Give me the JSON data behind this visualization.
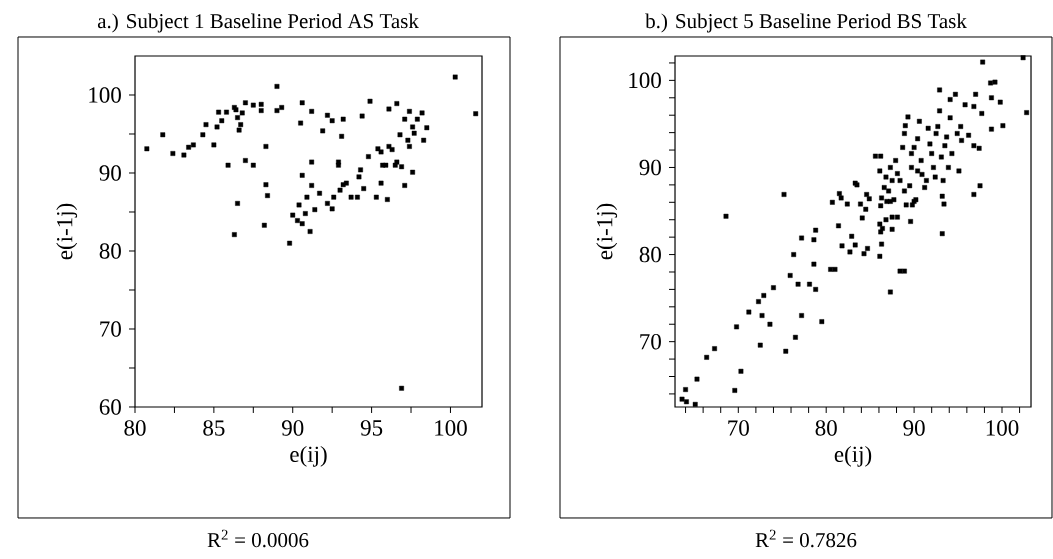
{
  "chart_data": [
    {
      "type": "scatter",
      "title": "a.) Subject 1 Baseline Period AS Task",
      "xlabel": "e(ij)",
      "ylabel": "e(i-1j)",
      "annotations": [
        "R$^{2}$ = 0.0006"
      ],
      "color": "#000000",
      "marker": "square",
      "grid": false,
      "xlim": [
        80,
        102
      ],
      "ylim": [
        60,
        105
      ],
      "xticks": [
        80,
        {
          "value": 82.5,
          "label": null
        },
        85,
        {
          "value": 87.5,
          "label": null
        },
        90,
        {
          "value": 92.5,
          "label": null
        },
        95,
        {
          "value": 97.5,
          "label": null
        },
        100
      ],
      "yticks": [
        60,
        {
          "value": 65,
          "label": null
        },
        70,
        {
          "value": 75,
          "label": null
        },
        80,
        {
          "value": 85,
          "label": null
        },
        90,
        {
          "value": 95,
          "label": null
        },
        100
      ],
      "x": [
        80.75,
        81.76,
        82.4,
        83.1,
        83.4,
        83.7,
        84.3,
        84.5,
        85.0,
        85.2,
        85.3,
        85.5,
        85.8,
        85.9,
        86.3,
        86.4,
        86.5,
        86.6,
        86.7,
        86.8,
        86.3,
        86.5,
        87.0,
        87.0,
        87.5,
        87.5,
        88.0,
        88.0,
        88.3,
        88.3,
        88.4,
        88.2,
        89.0,
        89.0,
        89.3,
        89.8,
        90.0,
        90.3,
        90.6,
        90.4,
        90.6,
        90.5,
        90.6,
        90.8,
        90.9,
        91.1,
        91.2,
        91.2,
        91.2,
        91.4,
        91.7,
        91.9,
        92.2,
        92.2,
        92.5,
        92.5,
        92.6,
        92.9,
        92.9,
        93.1,
        93.2,
        93.0,
        93.2,
        93.4,
        93.7,
        94.1,
        94.2,
        94.3,
        94.5,
        94.4,
        94.8,
        94.9,
        95.3,
        95.4,
        95.6,
        95.6,
        95.7,
        95.9,
        96.0,
        96.1,
        96.1,
        96.3,
        96.5,
        96.6,
        96.6,
        96.8,
        96.9,
        97.1,
        97.1,
        97.3,
        97.4,
        97.4,
        97.6,
        97.6,
        97.7,
        97.9,
        98.2,
        98.3,
        98.5,
        100.3,
        101.6,
        96.9
      ],
      "values": [
        93.1,
        94.9,
        92.5,
        92.3,
        93.3,
        93.6,
        94.9,
        96.2,
        93.6,
        95.9,
        97.8,
        96.7,
        97.8,
        91.0,
        98.4,
        98.1,
        97.1,
        95.5,
        96.2,
        97.7,
        82.1,
        86.1,
        99.0,
        91.6,
        98.7,
        91.0,
        98.8,
        98.0,
        93.4,
        88.5,
        87.1,
        83.3,
        101.1,
        98.0,
        98.4,
        81.0,
        84.6,
        83.9,
        83.5,
        85.9,
        99.0,
        96.4,
        89.7,
        84.8,
        86.9,
        82.5,
        91.4,
        97.9,
        88.4,
        85.3,
        87.4,
        95.4,
        97.4,
        86.1,
        96.7,
        85.4,
        86.9,
        91.4,
        91.0,
        94.7,
        96.9,
        87.8,
        88.5,
        88.7,
        86.9,
        86.9,
        89.5,
        90.4,
        88.0,
        97.3,
        92.1,
        99.2,
        86.9,
        93.1,
        92.7,
        88.7,
        91.0,
        91.0,
        86.6,
        98.2,
        93.4,
        93.0,
        91.0,
        98.9,
        91.4,
        94.9,
        90.8,
        88.4,
        96.9,
        94.2,
        97.9,
        93.4,
        95.9,
        90.1,
        95.1,
        96.9,
        97.7,
        94.2,
        95.8,
        102.3,
        97.6,
        62.4
      ]
    },
    {
      "type": "scatter",
      "title": "b.) Subject 5 Baseline Period BS Task",
      "xlabel": "e(ij)",
      "ylabel": "e(i-1j)",
      "annotations": [
        "R$^{2}$ = 0.7826"
      ],
      "color": "#000000",
      "marker": "square",
      "grid": false,
      "xlim": [
        62.8,
        103.3
      ],
      "ylim": [
        62.5,
        102.8
      ],
      "xticks": [
        {
          "value": 64,
          "label": null
        },
        {
          "value": 66,
          "label": null
        },
        {
          "value": 68,
          "label": null
        },
        70,
        {
          "value": 72,
          "label": null
        },
        {
          "value": 74,
          "label": null
        },
        {
          "value": 76,
          "label": null
        },
        {
          "value": 78,
          "label": null
        },
        80,
        {
          "value": 82,
          "label": null
        },
        {
          "value": 84,
          "label": null
        },
        {
          "value": 86,
          "label": null
        },
        {
          "value": 88,
          "label": null
        },
        90,
        {
          "value": 92,
          "label": null
        },
        {
          "value": 94,
          "label": null
        },
        {
          "value": 96,
          "label": null
        },
        {
          "value": 98,
          "label": null
        },
        100,
        {
          "value": 102,
          "label": null
        }
      ],
      "yticks": [
        {
          "value": 64,
          "label": null
        },
        {
          "value": 66,
          "label": null
        },
        {
          "value": 68,
          "label": null
        },
        70,
        {
          "value": 72,
          "label": null
        },
        {
          "value": 74,
          "label": null
        },
        {
          "value": 76,
          "label": null
        },
        {
          "value": 78,
          "label": null
        },
        80,
        {
          "value": 82,
          "label": null
        },
        {
          "value": 84,
          "label": null
        },
        {
          "value": 86,
          "label": null
        },
        {
          "value": 88,
          "label": null
        },
        90,
        {
          "value": 92,
          "label": null
        },
        {
          "value": 94,
          "label": null
        },
        {
          "value": 96,
          "label": null
        },
        {
          "value": 98,
          "label": null
        },
        100,
        {
          "value": 102,
          "label": null
        }
      ],
      "x": [
        63.6,
        64.1,
        65.1,
        64.0,
        65.3,
        69.6,
        70.3,
        75.4,
        72.5,
        66.4,
        67.3,
        68.6,
        69.8,
        71.2,
        72.3,
        72.9,
        74.0,
        72.7,
        73.6,
        75.2,
        75.9,
        76.3,
        76.8,
        77.2,
        77.2,
        76.5,
        78.1,
        78.6,
        78.6,
        78.8,
        78.8,
        79.5,
        80.5,
        81.0,
        80.7,
        81.4,
        81.5,
        81.8,
        81.7,
        82.4,
        82.7,
        82.9,
        83.3,
        83.3,
        83.5,
        83.9,
        84.1,
        84.3,
        84.5,
        84.7,
        84.6,
        84.9,
        85.6,
        86.2,
        86.1,
        86.3,
        86.2,
        86.1,
        86.2,
        86.3,
        86.1,
        86.4,
        86.8,
        87.3,
        87.5,
        87.1,
        87.5,
        88.1,
        86.9,
        87.3,
        87.7,
        86.6,
        86.8,
        87.3,
        87.5,
        87.9,
        88.1,
        88.4,
        88.4,
        88.9,
        88.7,
        88.9,
        89.0,
        89.3,
        88.9,
        89.1,
        89.5,
        89.6,
        89.7,
        89.8,
        90.0,
        90.2,
        89.7,
        90.0,
        90.4,
        90.6,
        90.4,
        90.8,
        90.9,
        91.2,
        91.4,
        91.6,
        91.8,
        92.0,
        92.2,
        92.4,
        92.5,
        92.7,
        92.9,
        93.1,
        93.3,
        92.9,
        93.2,
        93.4,
        93.2,
        93.5,
        93.7,
        93.9,
        94.1,
        94.1,
        94.3,
        94.7,
        94.9,
        95.1,
        95.3,
        95.4,
        95.8,
        96.2,
        96.8,
        97.0,
        96.8,
        97.4,
        96.8,
        97.5,
        97.7,
        97.8,
        98.7,
        99.2,
        98.8,
        98.8,
        99.8,
        100.1,
        102.4,
        102.8
      ],
      "values": [
        63.4,
        63.1,
        62.8,
        64.5,
        65.7,
        64.4,
        66.6,
        68.9,
        69.6,
        68.2,
        69.2,
        84.4,
        71.7,
        73.4,
        74.6,
        75.3,
        76.2,
        73.0,
        72.0,
        86.9,
        77.6,
        80.0,
        76.6,
        81.9,
        73.0,
        70.5,
        76.6,
        81.7,
        78.9,
        82.8,
        76.0,
        72.3,
        78.3,
        78.3,
        86.0,
        83.3,
        87.0,
        81.0,
        86.5,
        85.8,
        80.3,
        82.1,
        81.1,
        88.2,
        88.0,
        85.8,
        84.2,
        80.1,
        85.2,
        80.7,
        86.9,
        86.4,
        91.3,
        91.3,
        89.6,
        86.5,
        85.6,
        83.5,
        82.6,
        81.2,
        79.8,
        83.0,
        84.0,
        75.7,
        82.9,
        87.3,
        84.3,
        84.3,
        86.1,
        86.1,
        86.3,
        87.7,
        88.9,
        90.0,
        88.5,
        90.8,
        89.3,
        88.5,
        78.1,
        78.1,
        92.3,
        93.9,
        94.8,
        95.8,
        87.3,
        85.7,
        87.9,
        83.8,
        90.0,
        85.7,
        86.1,
        86.3,
        91.6,
        92.3,
        93.3,
        95.3,
        89.6,
        90.8,
        89.2,
        87.7,
        88.5,
        94.5,
        92.7,
        91.6,
        90.0,
        88.9,
        93.9,
        94.7,
        96.5,
        91.2,
        88.5,
        98.9,
        86.7,
        85.8,
        82.4,
        92.5,
        93.5,
        90.0,
        95.7,
        97.8,
        91.6,
        98.4,
        93.9,
        89.6,
        94.7,
        93.1,
        97.2,
        93.7,
        97.0,
        98.4,
        92.5,
        92.2,
        86.9,
        87.9,
        96.2,
        102.1,
        99.7,
        99.8,
        98.0,
        94.4,
        97.5,
        94.8,
        102.6,
        96.3
      ]
    }
  ]
}
